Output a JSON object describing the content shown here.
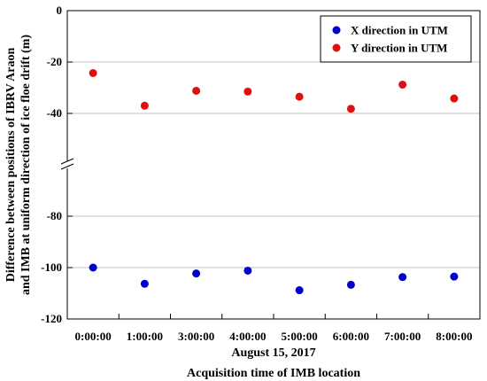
{
  "chart_data": {
    "type": "scatter",
    "categories": [
      "0:00:00",
      "1:00:00",
      "3:00:00",
      "4:00:00",
      "5:00:00",
      "6:00:00",
      "7:00:00",
      "8:00:00"
    ],
    "date_label": "August 15, 2017",
    "xlabel": "Acquisition time of IMB location",
    "ylabel": [
      "Difference between positions of IBRV Araon",
      "and IMB at uniform direction of ice floe drift (m)"
    ],
    "ylim": [
      -120,
      0
    ],
    "axis_break": [
      -60,
      -60
    ],
    "y_ticks": [
      0,
      -20,
      -40,
      -80,
      -100,
      -120
    ],
    "gridlines": [
      -20,
      -40,
      -80,
      -100
    ],
    "legend_position": "top-right",
    "series": [
      {
        "name": "X direction in UTM",
        "color": "#0000cc",
        "values": [
          -100,
          -106.3,
          -102.3,
          -101.2,
          -108.8,
          -106.7,
          -103.7,
          -103.5
        ]
      },
      {
        "name": "Y direction in UTM",
        "color": "#e01010",
        "values": [
          -24.3,
          -37,
          -31.2,
          -31.5,
          -33.5,
          -38.2,
          -28.8,
          -34.2
        ]
      }
    ]
  }
}
